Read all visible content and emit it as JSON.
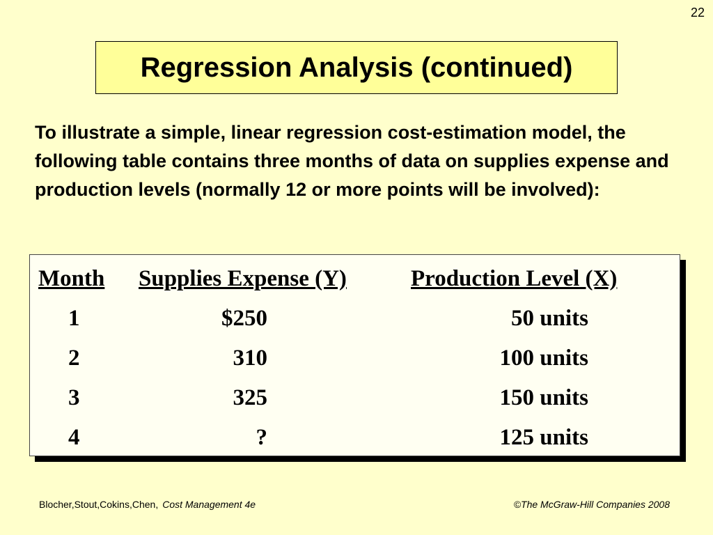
{
  "page_number": "22",
  "title": "Regression Analysis (continued)",
  "intro": "To illustrate a simple, linear regression cost-estimation model, the following table contains three months of data on supplies expense and production levels (normally 12 or more points will be involved):",
  "table": {
    "headers": [
      "Month",
      "Supplies Expense (Y)",
      "Production Level (X)"
    ],
    "rows": [
      {
        "month": "1",
        "expense": "$250",
        "production": "50 units"
      },
      {
        "month": "2",
        "expense": "310",
        "production": "100 units"
      },
      {
        "month": "3",
        "expense": "325",
        "production": "150 units"
      },
      {
        "month": "4",
        "expense": "?",
        "production": "125 units"
      }
    ]
  },
  "footer": {
    "authors": "Blocher,Stout,Cokins,Chen,",
    "book": "Cost Management 4e",
    "copyright": "©The McGraw-Hill Companies 2008"
  }
}
